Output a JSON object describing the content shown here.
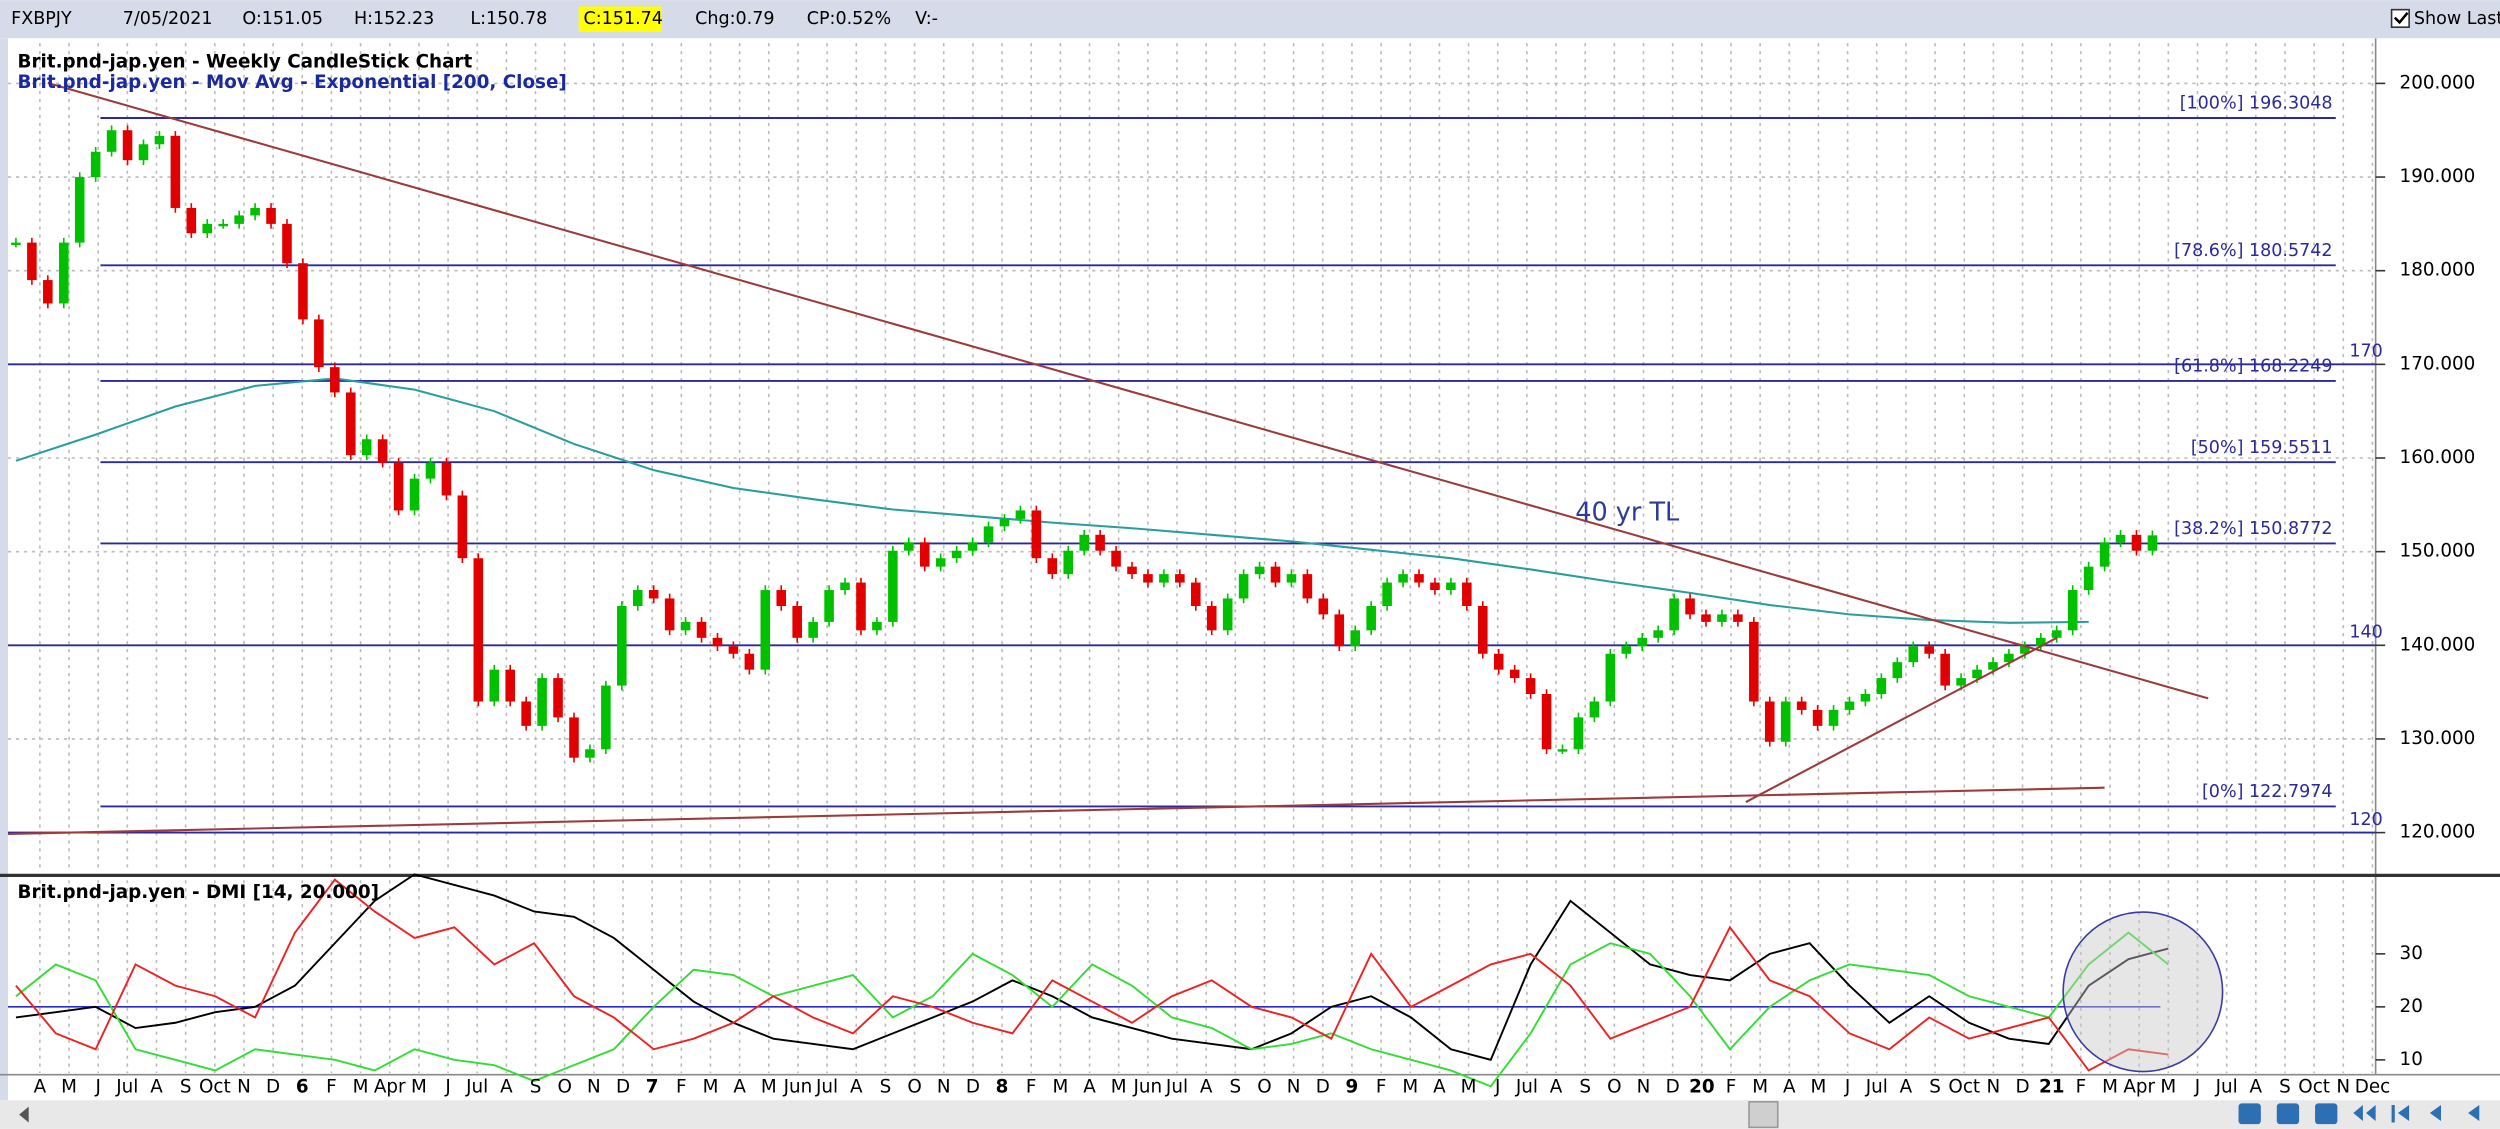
{
  "toolbar": {
    "symbol": "FXBPJY",
    "date": "7/05/2021",
    "open": "O:151.05",
    "high": "H:152.23",
    "low": "L:150.78",
    "close": "C:151.74",
    "change": "Chg:0.79",
    "change_pct": "CP:0.52%",
    "volume": "V:-",
    "show_last": "Show Last"
  },
  "chart_data": [
    {
      "type": "candlestick",
      "title": "Brit.pnd-jap.yen - Weekly CandleStick Chart",
      "subtitle": "Brit.pnd-jap.yen - Mov Avg - Exponential [200, Close]",
      "annotation": "40 yr TL",
      "closes": [
        183,
        179,
        176.5,
        183,
        190,
        192.7,
        195,
        191.8,
        193.5,
        194.4,
        186.7,
        184,
        185,
        185,
        185.9,
        186.7,
        185,
        180.8,
        174.8,
        169.7,
        167,
        160.3,
        162,
        159.5,
        154.4,
        157.8,
        159.5,
        156,
        149.3,
        134,
        137.4,
        134,
        131.4,
        136.5,
        132.3,
        128,
        128.9,
        135.7,
        144.2,
        145.9,
        145,
        141.6,
        142.5,
        140.8,
        139.9,
        139.1,
        137.4,
        145.9,
        144.2,
        140.8,
        142.5,
        145.9,
        146.7,
        141.6,
        142.5,
        150.1,
        151,
        148.4,
        149.3,
        150.1,
        151,
        152.7,
        153.5,
        154.4,
        149.3,
        147.6,
        150.1,
        151.8,
        150.1,
        148.4,
        147.6,
        146.7,
        147.6,
        146.7,
        144.2,
        141.6,
        145,
        147.6,
        148.4,
        146.7,
        147.6,
        145,
        143.3,
        139.9,
        141.6,
        144.2,
        146.7,
        147.6,
        146.7,
        145.9,
        146.7,
        144.2,
        139.1,
        137.4,
        136.5,
        134.8,
        128.9,
        128.9,
        132.3,
        134,
        139.1,
        139.9,
        140.8,
        141.6,
        145,
        143.3,
        142.5,
        143.3,
        142.5,
        134,
        129.7,
        134,
        133.1,
        131.4,
        133.1,
        134,
        134.8,
        136.5,
        138.2,
        139.9,
        139.1,
        135.7,
        136.5,
        137.4,
        138.2,
        139.1,
        139.9,
        140.8,
        141.6,
        145.9,
        148.4,
        151,
        151.8,
        150.1,
        151.74
      ],
      "ema": {
        "name": "Mov Avg - Exponential",
        "color": "#2a9d9d",
        "values": [
          159.7,
          162.5,
          165.5,
          167.7,
          168.5,
          167.3,
          165,
          161.5,
          158.7,
          156.8,
          155.6,
          154.5,
          153.8,
          153.1,
          152.5,
          151.8,
          151.1,
          150.2,
          149.3,
          148.1,
          146.8,
          145.6,
          144.3,
          143.3,
          142.7,
          142.4,
          142.5
        ]
      },
      "up_color": "#00c000",
      "down_color": "#e00000",
      "ylim": [
        115.6,
        204.3
      ],
      "yticks": [
        {
          "value": 200,
          "label": "200.000"
        },
        {
          "value": 190,
          "label": "190.000"
        },
        {
          "value": 180,
          "label": "180.000"
        },
        {
          "value": 170,
          "label": "170.000"
        },
        {
          "value": 160,
          "label": "160.000"
        },
        {
          "value": 150,
          "label": "150.000"
        },
        {
          "value": 140,
          "label": "140.000"
        },
        {
          "value": 130,
          "label": "130.000"
        },
        {
          "value": 120,
          "label": "120.000"
        }
      ],
      "levels": [
        {
          "value": 196.3048,
          "label": "[100%] 196.3048"
        },
        {
          "value": 180.5742,
          "label": "[78.6%] 180.5742"
        },
        {
          "value": 168.2249,
          "label": "[61.8%] 168.2249"
        },
        {
          "value": 159.5511,
          "label": "[50%] 159.5511"
        },
        {
          "value": 150.8772,
          "label": "[38.2%] 150.8772"
        },
        {
          "value": 122.7974,
          "label": "[0%] 122.7974"
        }
      ],
      "round_levels": [
        170,
        140,
        120
      ],
      "grid": true
    },
    {
      "type": "line",
      "title": "Brit.pnd-jap.yen - DMI [14, 20.000]",
      "series": [
        {
          "name": "ADX",
          "color": "#000000",
          "values": [
            18,
            19,
            20,
            16,
            17,
            19,
            20,
            24,
            32,
            40,
            45,
            43,
            41,
            38,
            37,
            33,
            27,
            21,
            17,
            14,
            13,
            12,
            15,
            18,
            21,
            25,
            22,
            18,
            16,
            14,
            13,
            12,
            15,
            20,
            22,
            18,
            12,
            10,
            28,
            40,
            34,
            28,
            26,
            25,
            30,
            32,
            24,
            17,
            22,
            17,
            14,
            13,
            24,
            29,
            31
          ]
        },
        {
          "name": "+DI",
          "color": "#33dd33",
          "values": [
            22,
            28,
            25,
            12,
            10,
            8,
            12,
            11,
            10,
            8,
            12,
            10,
            9,
            6,
            9,
            12,
            20,
            27,
            26,
            22,
            24,
            26,
            18,
            22,
            30,
            26,
            20,
            28,
            24,
            18,
            16,
            12,
            13,
            15,
            12,
            10,
            8,
            5,
            15,
            28,
            32,
            30,
            22,
            12,
            20,
            25,
            28,
            27,
            26,
            22,
            20,
            18,
            28,
            34,
            28
          ]
        },
        {
          "name": "-DI",
          "color": "#ee2222",
          "values": [
            24,
            15,
            12,
            28,
            24,
            22,
            18,
            34,
            44,
            38,
            33,
            35,
            28,
            32,
            22,
            18,
            12,
            14,
            17,
            22,
            18,
            15,
            22,
            20,
            17,
            15,
            25,
            21,
            17,
            22,
            25,
            20,
            18,
            14,
            30,
            20,
            24,
            28,
            30,
            24,
            14,
            17,
            20,
            35,
            25,
            22,
            15,
            12,
            18,
            14,
            16,
            18,
            8,
            12,
            11
          ]
        }
      ],
      "threshold": 20,
      "ylim": [
        7.8,
        44.2
      ],
      "yticks": [
        30,
        20,
        10
      ]
    }
  ],
  "x_axis": {
    "labels": [
      "A",
      "M",
      "J",
      "Jul",
      "A",
      "S",
      "Oct",
      "N",
      "D",
      "6",
      "F",
      "M",
      "Apr",
      "M",
      "J",
      "Jul",
      "A",
      "S",
      "O",
      "N",
      "D",
      "7",
      "F",
      "M",
      "A",
      "M",
      "Jun",
      "Jul",
      "A",
      "S",
      "O",
      "N",
      "D",
      "8",
      "F",
      "M",
      "A",
      "M",
      "Jun",
      "Jul",
      "A",
      "S",
      "O",
      "N",
      "D",
      "9",
      "F",
      "M",
      "A",
      "M",
      "J",
      "Jul",
      "A",
      "S",
      "O",
      "N",
      "D",
      "20",
      "F",
      "M",
      "A",
      "M",
      "J",
      "Jul",
      "A",
      "S",
      "Oct",
      "N",
      "D",
      "21",
      "F",
      "M",
      "Apr",
      "M",
      "J",
      "Jul",
      "A",
      "S",
      "Oct",
      "N",
      "Dec"
    ]
  }
}
